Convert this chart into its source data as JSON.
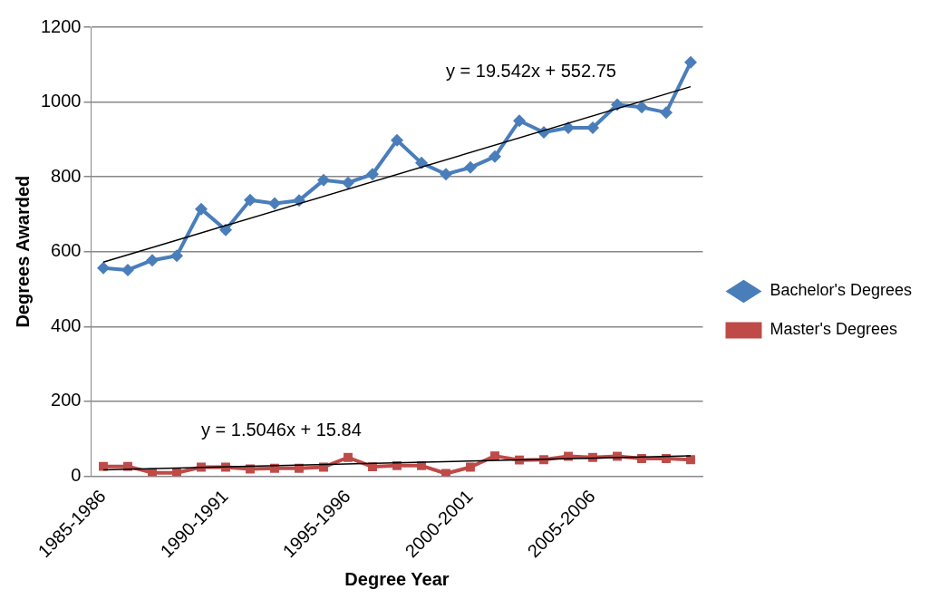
{
  "chart_data": {
    "type": "line",
    "xlabel": "Degree Year",
    "ylabel": "Degrees Awarded",
    "categories": [
      "1985-1986",
      null,
      null,
      null,
      null,
      "1990-1991",
      null,
      null,
      null,
      null,
      "1995-1996",
      null,
      null,
      null,
      null,
      "2000-2001",
      null,
      null,
      null,
      null,
      "2005-2006",
      null,
      null,
      null,
      null
    ],
    "series": [
      {
        "name": "Bachelor's Degrees",
        "color": "#4a7ebb",
        "marker": "diamond",
        "values": [
          556,
          551,
          577,
          589,
          714,
          658,
          738,
          729,
          737,
          791,
          784,
          807,
          898,
          837,
          807,
          825,
          854,
          950,
          919,
          931,
          931,
          993,
          986,
          972,
          1106
        ]
      },
      {
        "name": "Master's Degrees",
        "color": "#be4b48",
        "marker": "square",
        "values": [
          26,
          26,
          9,
          9,
          24,
          24,
          19,
          21,
          21,
          24,
          50,
          25,
          28,
          28,
          7,
          24,
          54,
          43,
          44,
          53,
          50,
          53,
          47,
          47,
          44
        ]
      },
      {
        "type": "line",
        "color": "#000000",
        "marker": "none",
        "values": [
          572,
          null,
          null,
          null,
          null,
          null,
          null,
          null,
          null,
          null,
          null,
          null,
          null,
          null,
          null,
          null,
          null,
          null,
          null,
          null,
          null,
          null,
          null,
          null,
          1041
        ]
      },
      {
        "type": "line",
        "color": "#000000",
        "marker": "none",
        "values": [
          17,
          null,
          null,
          null,
          null,
          null,
          null,
          null,
          null,
          null,
          null,
          null,
          null,
          null,
          null,
          null,
          null,
          null,
          null,
          null,
          null,
          null,
          null,
          null,
          54
        ]
      }
    ],
    "ylim": [
      0,
      1200
    ],
    "yticks": [
      0,
      200,
      400,
      600,
      800,
      1000,
      1200
    ],
    "grid": "y",
    "legend": "right",
    "annotations": [
      "y = 19.542x + 552.75",
      "y = 1.5046x + 15.84"
    ]
  }
}
